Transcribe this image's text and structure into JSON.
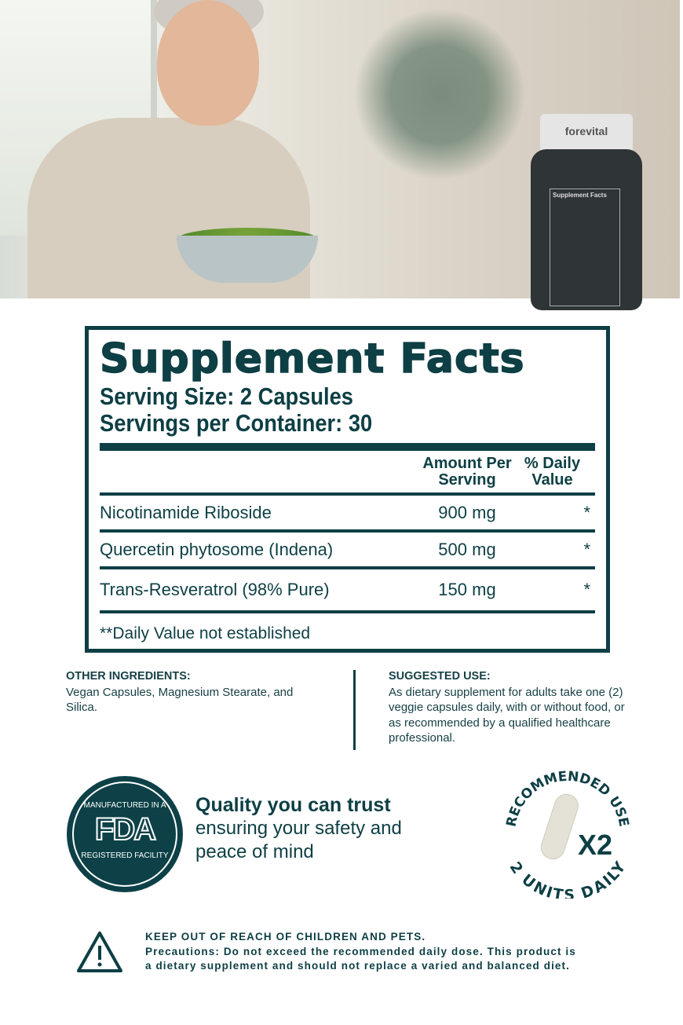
{
  "hero": {
    "bottle_brand": "forevital",
    "bottle_label_title": "Supplement Facts"
  },
  "facts": {
    "title": "Supplement Facts",
    "serving_size": "Serving Size: 2 Capsules",
    "servings_per_container": "Servings per Container: 30",
    "header": {
      "amount": "Amount Per Serving",
      "daily_value": "% Daily Value"
    },
    "rows": [
      {
        "name": "Nicotinamide Riboside",
        "amount": "900 mg",
        "dv": "*"
      },
      {
        "name": "Quercetin phytosome (Indena)",
        "amount": "500 mg",
        "dv": "*"
      },
      {
        "name": "Trans-Resveratrol (98% Pure)",
        "amount": "150 mg",
        "dv": "*"
      }
    ],
    "footnote": "**Daily Value not established"
  },
  "other_ingredients": {
    "title": "OTHER INGREDIENTS:",
    "text": "Vegan Capsules, Magnesium Stearate, and Silica."
  },
  "suggested_use": {
    "title": "SUGGESTED USE:",
    "text": "As dietary supplement for adults take one (2) veggie capsules daily, with or without food, or as recommended by a qualified healthcare professional."
  },
  "fda_badge": {
    "top": "MANUFACTURED IN A",
    "mark": "FDA",
    "bottom": "REGISTERED FACILITY"
  },
  "quality": {
    "headline": "Quality you can trust",
    "line1": "ensuring your safety and",
    "line2": "peace of mind"
  },
  "recommended": {
    "top_arc": "RECOMMENDED USE",
    "bottom_arc": "2 UNITS DAILY",
    "multiplier": "X2"
  },
  "warning": {
    "line1": "KEEP OUT OF REACH OF CHILDREN AND PETS.",
    "line2": "Precautions: Do not exceed the recommended daily dose. This product is",
    "line3": "a dietary supplement and should not replace a varied and balanced diet."
  },
  "colors": {
    "primary": "#0d3f44"
  }
}
